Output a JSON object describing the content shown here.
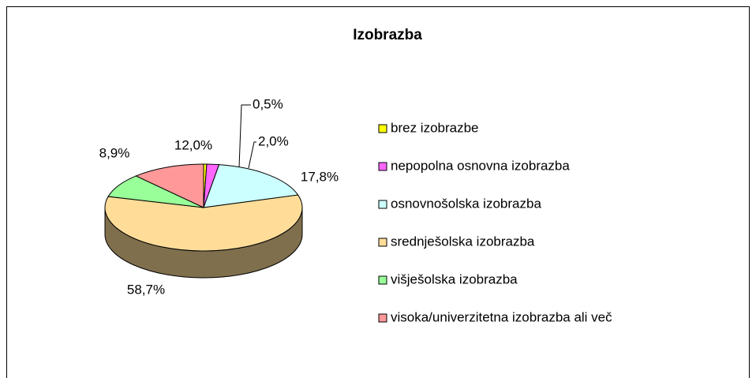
{
  "chart_data": {
    "type": "pie3d",
    "title": "Izobrazba",
    "categories": [
      "brez izobrazbe",
      "nepopolna osnovna izobrazba",
      "osnovnošolska izobrazba",
      "srednješolska izobrazba",
      "višješolska izobrazba",
      "visoka/univerzitetna izobrazba ali več"
    ],
    "values": [
      0.5,
      2.0,
      17.8,
      58.7,
      8.9,
      12.0
    ],
    "value_labels": [
      "0,5%",
      "2,0%",
      "17,8%",
      "58,7%",
      "8,9%",
      "12,0%"
    ],
    "colors": [
      "#ffff00",
      "#ff66ff",
      "#ccffff",
      "#ffdd99",
      "#99ff99",
      "#ff9999"
    ],
    "legend": "right"
  }
}
